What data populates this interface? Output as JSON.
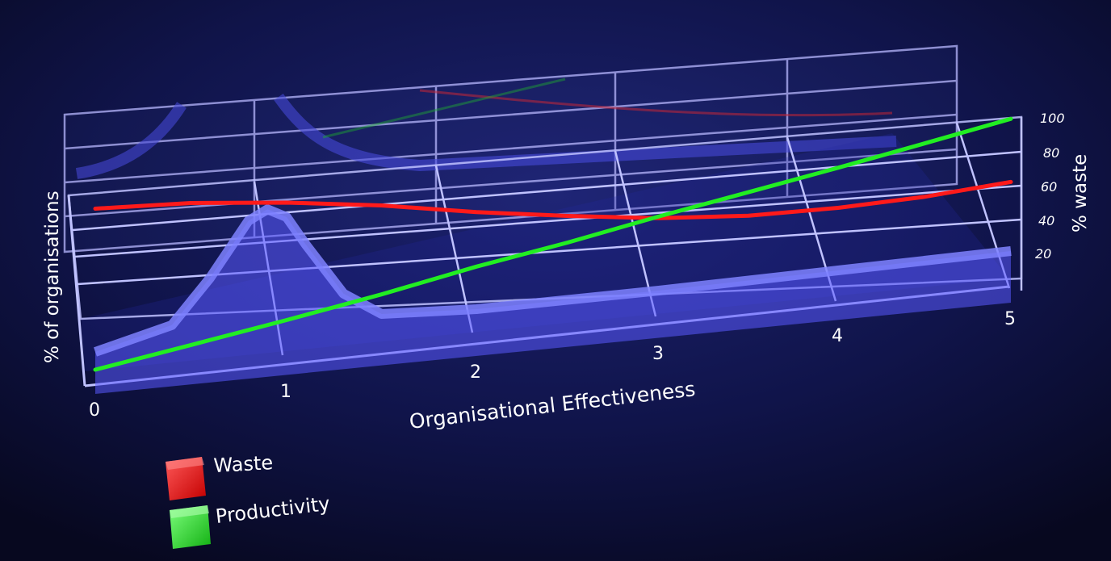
{
  "chart_data": {
    "type": "line",
    "title": "",
    "xlabel": "Organisational Effectiveness",
    "ylabel_left": "% of organisations",
    "ylabel_right": "% waste",
    "x_ticks": [
      "0",
      "1",
      "2",
      "3",
      "4",
      "5"
    ],
    "y_right_ticks": [
      "20",
      "40",
      "60",
      "80",
      "100"
    ],
    "xlim": [
      0,
      5
    ],
    "ylim_right": [
      0,
      100
    ],
    "grid": true,
    "legend_position": "bottom-left",
    "x": [
      0,
      0.5,
      1,
      1.5,
      2,
      2.5,
      3,
      3.5,
      4,
      4.5,
      5
    ],
    "series": [
      {
        "name": "Waste",
        "color": "#ff1a1a",
        "values": [
          95,
          92,
          86,
          78,
          68,
          60,
          53,
          49,
          48,
          49,
          52
        ]
      },
      {
        "name": "Productivity",
        "color": "#22ee22",
        "values": [
          0,
          9,
          18,
          27,
          37,
          45,
          54,
          62,
          70,
          78,
          86
        ]
      }
    ],
    "distribution": {
      "name": "% of organisations",
      "color": "#5a5aff",
      "x": [
        0,
        0.4,
        0.6,
        0.8,
        0.9,
        1.0,
        1.1,
        1.3,
        1.5,
        2,
        3,
        4,
        5
      ],
      "values": [
        4,
        12,
        30,
        52,
        56,
        52,
        40,
        18,
        8,
        6,
        6,
        7,
        8
      ]
    }
  },
  "legend": {
    "waste_label": "Waste",
    "productivity_label": "Productivity"
  }
}
